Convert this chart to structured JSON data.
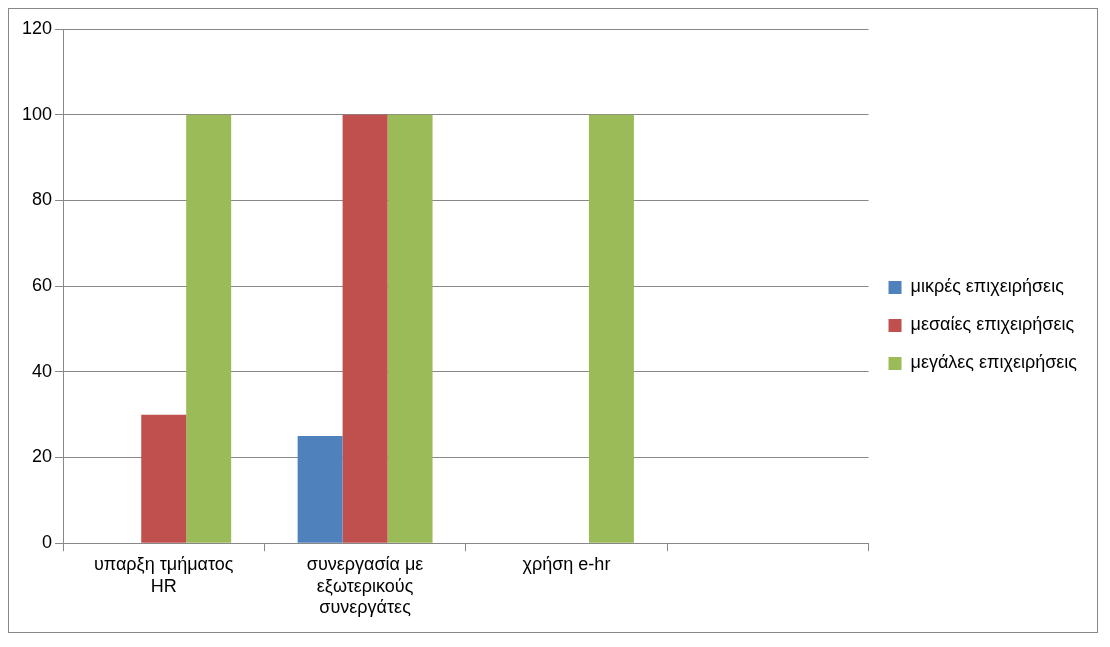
{
  "chart_data": {
    "type": "bar",
    "categories": [
      "υπαρξη τμήματος HR",
      "συνεργασία με εξωτερικούς συνεργάτες",
      "χρήση e-hr",
      null
    ],
    "series": [
      {
        "name": "μικρές επιχειρήσεις",
        "color": "#4f81bd",
        "values": [
          0,
          25,
          0,
          0
        ]
      },
      {
        "name": "μεσαίες επιχειρήσεις",
        "color": "#c0504d",
        "values": [
          30,
          100,
          0,
          0
        ]
      },
      {
        "name": "μεγάλες επιχειρήσεις",
        "color": "#9bbb59",
        "values": [
          100,
          100,
          100,
          0
        ]
      }
    ],
    "ylim": [
      0,
      120
    ],
    "yticks": [
      0,
      20,
      40,
      60,
      80,
      100,
      120
    ],
    "grid": "y",
    "legend": "right"
  }
}
